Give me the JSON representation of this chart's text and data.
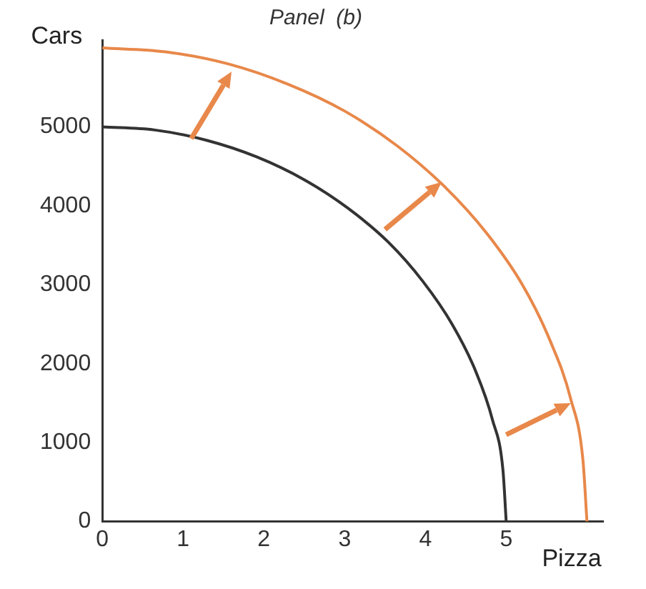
{
  "chart_data": {
    "type": "line",
    "title": "Panel  (b)",
    "xlabel": "Pizza",
    "ylabel": "Cars",
    "xlim": [
      0,
      6.2
    ],
    "xticks": [
      0,
      1,
      2,
      3,
      4,
      5
    ],
    "ylim": [
      0,
      6100
    ],
    "yticks": [
      0,
      1000,
      2000,
      3000,
      4000,
      5000
    ],
    "grid": false,
    "legend": false,
    "marker": "none",
    "line_style": "solid",
    "series": [
      {
        "color": "#333333",
        "x": [
          0,
          0.65,
          1.29,
          1.91,
          2.5,
          3.04,
          3.54,
          3.97,
          4.33,
          4.62,
          4.83,
          4.96,
          5
        ],
        "values": [
          5000,
          4960,
          4830,
          4620,
          4330,
          3970,
          3540,
          3040,
          2500,
          1910,
          1290,
          650,
          0
        ]
      },
      {
        "color": "#e8884a",
        "x": [
          0,
          0.78,
          1.55,
          2.3,
          3,
          3.65,
          4.24,
          4.76,
          5.2,
          5.54,
          5.8,
          5.95,
          6
        ],
        "values": [
          6000,
          5950,
          5800,
          5540,
          5200,
          4760,
          4240,
          3650,
          3000,
          2300,
          1550,
          780,
          0
        ]
      }
    ]
  }
}
